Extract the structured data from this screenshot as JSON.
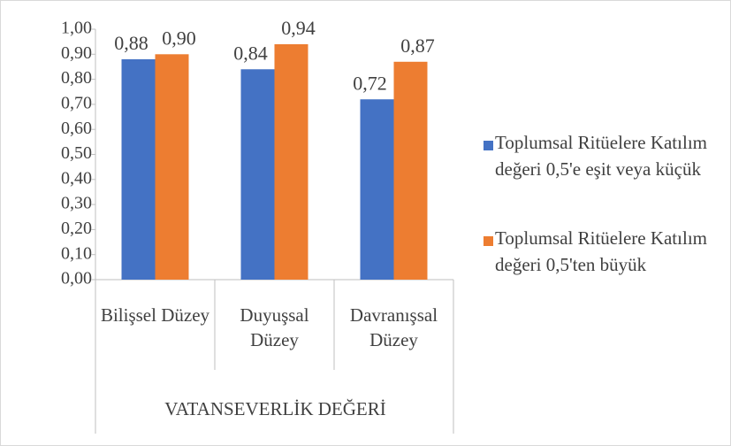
{
  "chart_data": {
    "type": "bar",
    "categories": [
      "Bilişsel Düzey",
      "Duyuşsal Düzey",
      "Davranışsal Düzey"
    ],
    "x_label": "VATANSEVERLİK DEĞERİ",
    "series": [
      {
        "name": "Toplumsal Ritüelere Katılım değeri 0,5'e eşit veya küçük",
        "color": "#4472c4",
        "values": [
          0.88,
          0.84,
          0.72
        ],
        "value_labels": [
          "0,88",
          "0,84",
          "0,72"
        ]
      },
      {
        "name": "Toplumsal Ritüelere Katılım değeri 0,5'ten büyük",
        "color": "#ed7d31",
        "values": [
          0.9,
          0.94,
          0.87
        ],
        "value_labels": [
          "0,90",
          "0,94",
          "0,87"
        ]
      }
    ],
    "ylim": [
      0,
      1
    ],
    "yticks": [
      {
        "value": 0,
        "label": "0,00"
      },
      {
        "value": 0.1,
        "label": "0,10"
      },
      {
        "value": 0.2,
        "label": "0,20"
      },
      {
        "value": 0.3,
        "label": "0,30"
      },
      {
        "value": 0.4,
        "label": "0,40"
      },
      {
        "value": 0.5,
        "label": "0,50"
      },
      {
        "value": 0.6,
        "label": "0,60"
      },
      {
        "value": 0.7,
        "label": "0,70"
      },
      {
        "value": 0.8,
        "label": "0,80"
      },
      {
        "value": 0.9,
        "label": "0,90"
      },
      {
        "value": 1,
        "label": "1,00"
      }
    ],
    "legend": "right"
  }
}
